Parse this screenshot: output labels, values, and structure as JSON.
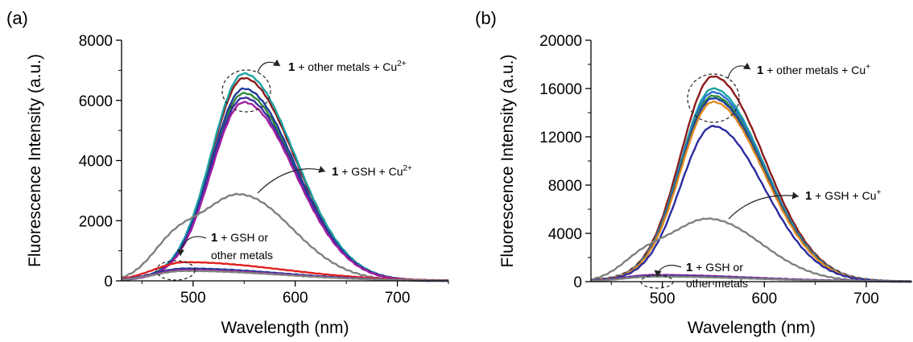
{
  "chart_data": [
    {
      "panel_label": "(a)",
      "type": "line",
      "xlabel": "Wavelength (nm)",
      "ylabel": "Fluorescence Intensity (a.u.)",
      "xlim": [
        430,
        750
      ],
      "ylim": [
        0,
        8000
      ],
      "xticks": [
        "500",
        "600",
        "700"
      ],
      "xtick_values": [
        500,
        600,
        700
      ],
      "yticks": [
        "0",
        "2000",
        "4000",
        "6000",
        "8000"
      ],
      "ytick_values": [
        0,
        2000,
        4000,
        6000,
        8000
      ],
      "grid": false,
      "annotations": [
        {
          "bold": "1",
          "text": " + other metals + Cu",
          "sup": "2+"
        },
        {
          "bold": "1",
          "text": " + GSH + Cu",
          "sup": "2+"
        },
        {
          "bold": "1",
          "text": " + GSH or",
          "line2": "other metals"
        }
      ],
      "series": [
        {
          "color": "#8b1a1a",
          "kind": "peak",
          "peak": 6700
        },
        {
          "color": "#1aa3a3",
          "kind": "peak",
          "peak": 6850
        },
        {
          "color": "#2e8b3a",
          "kind": "peak",
          "peak": 6200
        },
        {
          "color": "#1f3d9c",
          "kind": "peak",
          "peak": 6350
        },
        {
          "color": "#3a2fa0",
          "kind": "peak",
          "peak": 6050
        },
        {
          "color": "#a01fa0",
          "kind": "peak",
          "peak": 5900
        },
        {
          "color": "#808080",
          "kind": "gsh",
          "peak": 2870,
          "shoulder": 1200
        },
        {
          "color": "#e02020",
          "kind": "low",
          "peak": 620
        },
        {
          "color": "#1f3d9c",
          "kind": "low",
          "peak": 410
        },
        {
          "color": "#a01fa0",
          "kind": "low",
          "peak": 360
        },
        {
          "color": "#808080",
          "kind": "low",
          "peak": 330
        }
      ]
    },
    {
      "panel_label": "(b)",
      "type": "line",
      "xlabel": "Wavelength (nm)",
      "ylabel": "Fluorescence Intensity (a.u.)",
      "xlim": [
        430,
        745
      ],
      "ylim": [
        0,
        20000
      ],
      "xticks": [
        "500",
        "600",
        "700"
      ],
      "xtick_values": [
        500,
        600,
        700
      ],
      "yticks": [
        "0",
        "4000",
        "8000",
        "12000",
        "16000",
        "20000"
      ],
      "ytick_values": [
        0,
        4000,
        8000,
        12000,
        16000,
        20000
      ],
      "grid": false,
      "annotations": [
        {
          "bold": "1",
          "text": " + other metals + Cu",
          "sup": "+"
        },
        {
          "bold": "1",
          "text": " + GSH + Cu",
          "sup": "+"
        },
        {
          "bold": "1",
          "text": " + GSH or",
          "line2": "other metals"
        }
      ],
      "series": [
        {
          "color": "#8b1a1a",
          "kind": "peak",
          "peak": 16900
        },
        {
          "color": "#1aa3a3",
          "kind": "peak",
          "peak": 15900
        },
        {
          "color": "#2f6fd6",
          "kind": "peak",
          "peak": 15600
        },
        {
          "color": "#2e8b3a",
          "kind": "peak",
          "peak": 15300
        },
        {
          "color": "#1f3d9c",
          "kind": "peak",
          "peak": 15100
        },
        {
          "color": "#e08a1e",
          "kind": "peak",
          "peak": 14800
        },
        {
          "color": "#2a2aa0",
          "kind": "peak",
          "peak": 12800
        },
        {
          "color": "#808080",
          "kind": "gsh",
          "peak": 5200,
          "shoulder": 1800
        },
        {
          "color": "#a01fa0",
          "kind": "low",
          "peak": 560
        },
        {
          "color": "#1f3d9c",
          "kind": "low",
          "peak": 480
        },
        {
          "color": "#808080",
          "kind": "low",
          "peak": 420
        }
      ]
    }
  ]
}
